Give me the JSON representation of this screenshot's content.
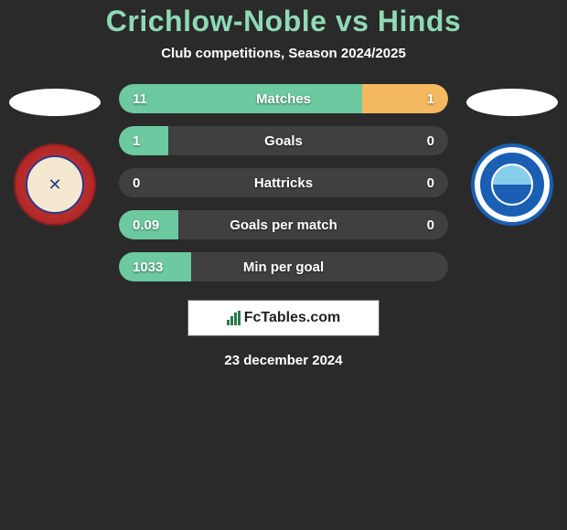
{
  "header": {
    "title": "Crichlow-Noble vs Hinds",
    "subtitle": "Club competitions, Season 2024/2025",
    "title_color": "#8fd9b6"
  },
  "colors": {
    "left_bar": "#6cc9a0",
    "right_bar": "#f4b860",
    "row_bg": "#404040",
    "page_bg": "#2a2a2a"
  },
  "stats": [
    {
      "label": "Matches",
      "left_val": "11",
      "right_val": "1",
      "left_pct": 74,
      "right_pct": 26
    },
    {
      "label": "Goals",
      "left_val": "1",
      "right_val": "0",
      "left_pct": 15,
      "right_pct": 0
    },
    {
      "label": "Hattricks",
      "left_val": "0",
      "right_val": "0",
      "left_pct": 0,
      "right_pct": 0
    },
    {
      "label": "Goals per match",
      "left_val": "0.09",
      "right_val": "0",
      "left_pct": 18,
      "right_pct": 0
    },
    {
      "label": "Min per goal",
      "left_val": "1033",
      "right_val": "",
      "left_pct": 22,
      "right_pct": 0
    }
  ],
  "footer": {
    "brand": "FcTables.com",
    "date": "23 december 2024"
  }
}
